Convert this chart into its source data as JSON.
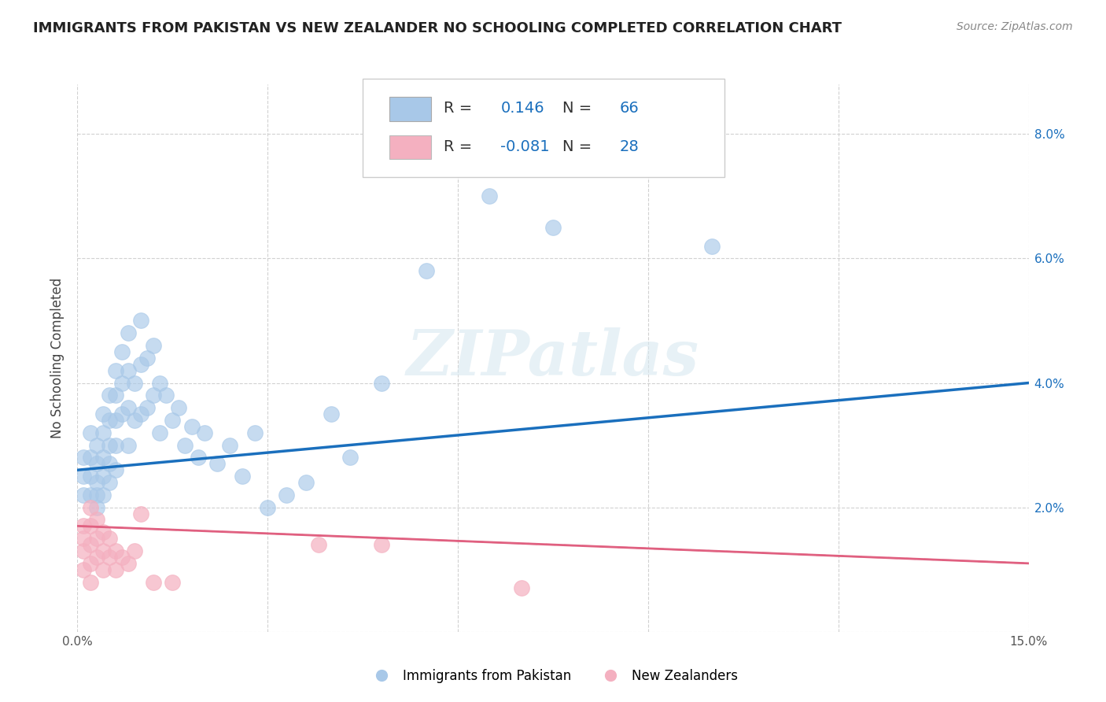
{
  "title": "IMMIGRANTS FROM PAKISTAN VS NEW ZEALANDER NO SCHOOLING COMPLETED CORRELATION CHART",
  "source": "Source: ZipAtlas.com",
  "ylabel": "No Schooling Completed",
  "xlim": [
    0,
    0.15
  ],
  "ylim": [
    0,
    0.088
  ],
  "blue_color": "#a8c8e8",
  "pink_color": "#f4b0c0",
  "blue_line_color": "#1a6fbd",
  "pink_line_color": "#e06080",
  "watermark": "ZIPatlas",
  "blue_r": 0.146,
  "blue_n": 66,
  "pink_r": -0.081,
  "pink_n": 28,
  "blue_scatter_x": [
    0.001,
    0.001,
    0.001,
    0.002,
    0.002,
    0.002,
    0.002,
    0.003,
    0.003,
    0.003,
    0.003,
    0.003,
    0.004,
    0.004,
    0.004,
    0.004,
    0.004,
    0.005,
    0.005,
    0.005,
    0.005,
    0.005,
    0.006,
    0.006,
    0.006,
    0.006,
    0.006,
    0.007,
    0.007,
    0.007,
    0.008,
    0.008,
    0.008,
    0.008,
    0.009,
    0.009,
    0.01,
    0.01,
    0.01,
    0.011,
    0.011,
    0.012,
    0.012,
    0.013,
    0.013,
    0.014,
    0.015,
    0.016,
    0.017,
    0.018,
    0.019,
    0.02,
    0.022,
    0.024,
    0.026,
    0.028,
    0.03,
    0.033,
    0.036,
    0.04,
    0.043,
    0.048,
    0.055,
    0.065,
    0.075,
    0.1
  ],
  "blue_scatter_y": [
    0.028,
    0.025,
    0.022,
    0.032,
    0.028,
    0.025,
    0.022,
    0.03,
    0.027,
    0.024,
    0.022,
    0.02,
    0.035,
    0.032,
    0.028,
    0.025,
    0.022,
    0.038,
    0.034,
    0.03,
    0.027,
    0.024,
    0.042,
    0.038,
    0.034,
    0.03,
    0.026,
    0.045,
    0.04,
    0.035,
    0.048,
    0.042,
    0.036,
    0.03,
    0.04,
    0.034,
    0.05,
    0.043,
    0.035,
    0.044,
    0.036,
    0.046,
    0.038,
    0.04,
    0.032,
    0.038,
    0.034,
    0.036,
    0.03,
    0.033,
    0.028,
    0.032,
    0.027,
    0.03,
    0.025,
    0.032,
    0.02,
    0.022,
    0.024,
    0.035,
    0.028,
    0.04,
    0.058,
    0.07,
    0.065,
    0.062
  ],
  "pink_scatter_x": [
    0.001,
    0.001,
    0.001,
    0.001,
    0.002,
    0.002,
    0.002,
    0.002,
    0.002,
    0.003,
    0.003,
    0.003,
    0.004,
    0.004,
    0.004,
    0.005,
    0.005,
    0.006,
    0.006,
    0.007,
    0.008,
    0.009,
    0.01,
    0.012,
    0.015,
    0.038,
    0.048,
    0.07
  ],
  "pink_scatter_y": [
    0.017,
    0.015,
    0.013,
    0.01,
    0.02,
    0.017,
    0.014,
    0.011,
    0.008,
    0.018,
    0.015,
    0.012,
    0.016,
    0.013,
    0.01,
    0.015,
    0.012,
    0.013,
    0.01,
    0.012,
    0.011,
    0.013,
    0.019,
    0.008,
    0.008,
    0.014,
    0.014,
    0.007
  ],
  "blue_trend_x": [
    0.0,
    0.15
  ],
  "blue_trend_y": [
    0.026,
    0.04
  ],
  "pink_trend_x": [
    0.0,
    0.15
  ],
  "pink_trend_y": [
    0.017,
    0.011
  ]
}
